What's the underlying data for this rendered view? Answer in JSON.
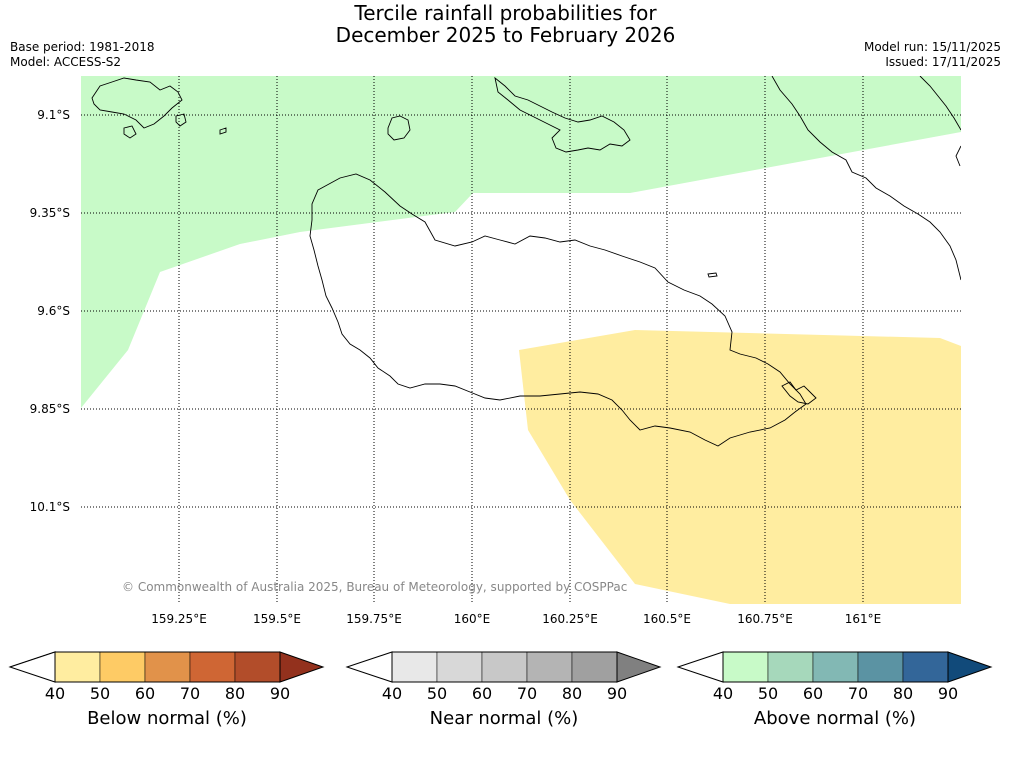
{
  "title": {
    "line1": "Tercile rainfall probabilities for",
    "line2": "December 2025 to February 2026"
  },
  "meta": {
    "base_period": "Base period: 1981-2018",
    "model": "Model: ACCESS-S2",
    "model_run": "Model run: 15/11/2025",
    "issued": "Issued: 17/11/2025"
  },
  "copyright": "© Commonwealth of Australia 2025, Bureau of Meteorology, supported by COSPPac",
  "lat_labels": [
    "9.1°S",
    "9.35°S",
    "9.6°S",
    "9.85°S",
    "10.1°S"
  ],
  "lon_labels": [
    "159.25°E",
    "159.5°E",
    "159.75°E",
    "160°E",
    "160.25°E",
    "160.5°E",
    "160.75°E",
    "161°E"
  ],
  "colorbars": [
    {
      "title": "Below normal (%)",
      "ticks": [
        "40",
        "50",
        "60",
        "70",
        "80",
        "90"
      ],
      "colors": [
        "#ffffff",
        "#ffeda0",
        "#fecb65",
        "#e1924a",
        "#cf6634",
        "#b24d2a",
        "#93311d"
      ]
    },
    {
      "title": "Near normal (%)",
      "ticks": [
        "40",
        "50",
        "60",
        "70",
        "80",
        "90"
      ],
      "colors": [
        "#ffffff",
        "#e8e8e8",
        "#d8d8d8",
        "#c8c8c8",
        "#b4b4b4",
        "#a0a0a0",
        "#808080"
      ]
    },
    {
      "title": "Above normal (%)",
      "ticks": [
        "40",
        "50",
        "60",
        "70",
        "80",
        "90"
      ],
      "colors": [
        "#ffffff",
        "#c8fac8",
        "#a6d8bb",
        "#82b8b4",
        "#5b93a3",
        "#336699",
        "#114a7a"
      ]
    }
  ],
  "colors": {
    "above_normal_region": "#c8fac8",
    "below_normal_region": "#ffeda0",
    "coastline": "#000000",
    "grid": "#000000"
  }
}
